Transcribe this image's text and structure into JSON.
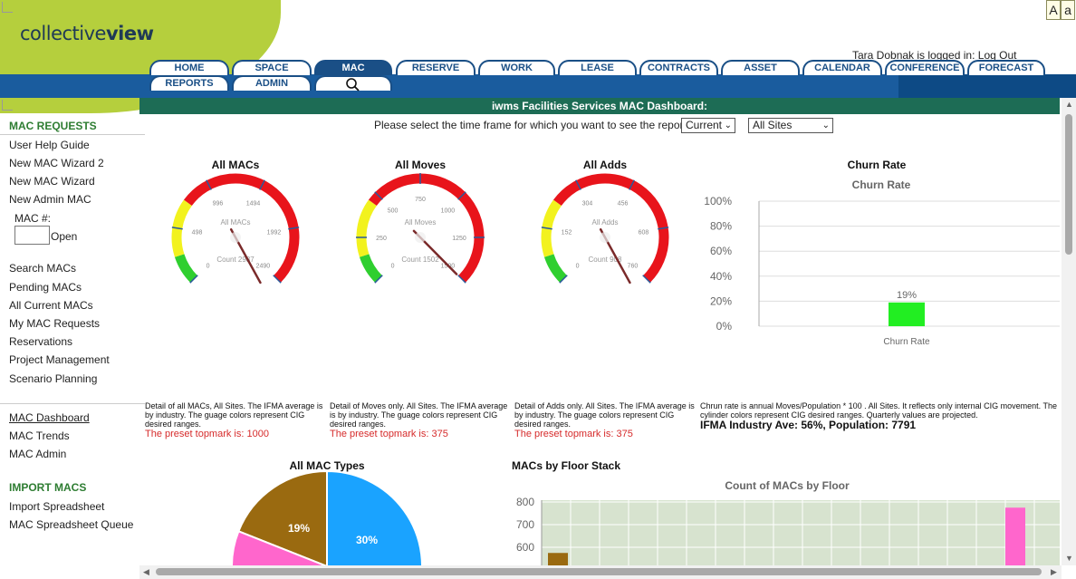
{
  "app": {
    "logo_light": "collective",
    "logo_bold": "view"
  },
  "font_controls": {
    "small": "A",
    "large": "a"
  },
  "user": {
    "logged_in_text": "Tara Dobnak is logged in:",
    "logout": "Log Out"
  },
  "nav": {
    "row1": [
      "HOME",
      "SPACE",
      "MAC",
      "RESERVE",
      "WORK",
      "LEASE",
      "CONTRACTS",
      "ASSET",
      "CALENDAR",
      "CONFERENCE",
      "FORECAST"
    ],
    "row2": [
      "REPORTS",
      "ADMIN"
    ],
    "active": "MAC",
    "search_icon": "search-icon"
  },
  "sidebar": {
    "section1": "MAC REQUESTS",
    "items1": [
      "User Help Guide",
      "New MAC Wizard 2",
      "New MAC Wizard",
      "New Admin MAC"
    ],
    "mac_label": "MAC #:",
    "open_label": "Open",
    "items2": [
      "Search MACs",
      "Pending MACs",
      "All Current MACs",
      "My MAC Requests",
      "Reservations",
      "Project Management",
      "Scenario Planning"
    ],
    "items3": [
      "MAC Dashboard",
      "MAC Trends",
      "MAC Admin"
    ],
    "section2": "IMPORT MACS",
    "items4": [
      "Import Spreadsheet",
      "MAC Spreadsheet Queue"
    ]
  },
  "dashboard": {
    "title": "iwms Facilities Services MAC Dashboard:",
    "select_prompt": "Please select the time frame for which you want to see the reports:",
    "timeframe": "Current",
    "site": "All Sites"
  },
  "colors": {
    "gauge_red": "#e8141b",
    "gauge_yellow": "#f2f21e",
    "gauge_green": "#2fcf2f",
    "needle": "#7a2a2a"
  },
  "gauges": [
    {
      "title": "All MACs",
      "center_label": "All MACs",
      "count": "Count 2987",
      "ticks": [
        "0",
        "498",
        "996",
        "1494",
        "1992",
        "2490"
      ],
      "max": 2490,
      "value": 2987,
      "desc": "Detail of all MACs, All Sites. The IFMA average is by industry. The guage colors represent CIG desired ranges.",
      "topmark": "The preset topmark is: 1000"
    },
    {
      "title": "All Moves",
      "center_label": "All Moves",
      "count": "Count 1502",
      "ticks": [
        "0",
        "250",
        "500",
        "750",
        "1000",
        "1250",
        "1500"
      ],
      "max": 1500,
      "value": 1502,
      "desc": "Detail of Moves only. All Sites. The IFMA average is by industry. The guage colors represent CIG desired ranges.",
      "topmark": "The preset topmark is: 375"
    },
    {
      "title": "All Adds",
      "center_label": "All Adds",
      "count": "Count 908",
      "ticks": [
        "0",
        "152",
        "304",
        "456",
        "608",
        "760"
      ],
      "max": 760,
      "value": 908,
      "desc": "Detail of Adds only. All Sites. The IFMA average is by industry. The guage colors represent CIG desired ranges.",
      "topmark": "The preset topmark is: 375"
    }
  ],
  "churn": {
    "outer_title": "Churn Rate",
    "desc": "Chrun rate is annual Moves/Population * 100 . All Sites. It reflects only internal CIG movement. The cylinder colors represent CIG desired ranges. Quarterly values are projected.",
    "ifma": "IFMA Industry Ave: 56%, Population: 7791"
  },
  "pie_title": "All MAC Types",
  "floor_title": "MACs by Floor Stack",
  "chart_data": [
    {
      "type": "bar",
      "title": "Churn Rate",
      "categories": [
        "Churn Rate"
      ],
      "values": [
        19
      ],
      "value_labels": [
        "19%"
      ],
      "ylim": [
        0,
        100
      ],
      "yticks": [
        "0%",
        "20%",
        "40%",
        "60%",
        "80%",
        "100%"
      ],
      "color": "#22ee22",
      "grid": true
    },
    {
      "type": "pie",
      "slices": [
        {
          "label": "30%",
          "value": 30,
          "color": "#1aa3ff"
        },
        {
          "label": "19%",
          "value": 19,
          "color": "#9a6a10"
        },
        {
          "label": "",
          "value": 8,
          "color": "#ff66cc"
        }
      ]
    },
    {
      "type": "bar",
      "title": "Count of MACs by Floor",
      "yticks": [
        "600",
        "700",
        "800"
      ],
      "bars": [
        {
          "value": 575,
          "color": "#9a6a10"
        },
        {
          "value": 775,
          "color": "#ff66cc"
        }
      ],
      "grid": true
    }
  ]
}
